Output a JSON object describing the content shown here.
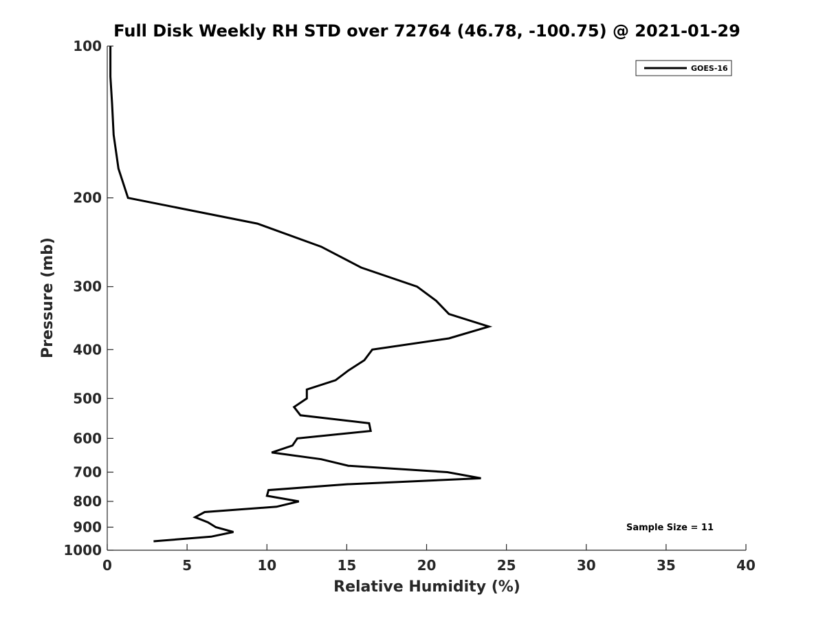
{
  "chart_data": {
    "type": "line",
    "title": "Full Disk Weekly RH STD over 72764 (46.78, -100.75) @ 2021-01-29",
    "xlabel": "Relative Humidity (%)",
    "ylabel": "Pressure (mb)",
    "xlim": [
      0,
      40
    ],
    "ylim": [
      100,
      1000
    ],
    "y_scale": "log",
    "y_reversed": true,
    "xticks": [
      0,
      5,
      10,
      15,
      20,
      25,
      30,
      35,
      40
    ],
    "yticks": [
      100,
      200,
      300,
      400,
      500,
      600,
      700,
      800,
      900,
      1000
    ],
    "grid": false,
    "legend_position": "top-right",
    "series": [
      {
        "name": "GOES-16",
        "color": "#000000",
        "x": [
          0.2,
          0.2,
          0.3,
          0.4,
          0.7,
          1.3,
          9.4,
          13.4,
          15.9,
          19.4,
          20.6,
          21.4,
          23.9,
          21.4,
          16.6,
          16.1,
          15.1,
          14.3,
          12.5,
          12.5,
          11.7,
          12.1,
          16.4,
          16.5,
          11.9,
          11.6,
          10.3,
          13.4,
          15.1,
          21.3,
          23.4,
          15.0,
          10.1,
          10.0,
          12.0,
          10.6,
          6.1,
          5.5,
          6.3,
          6.8,
          7.9,
          6.5,
          2.9
        ],
        "y": [
          100,
          115,
          130,
          150,
          175,
          200,
          225,
          250,
          275,
          300,
          320,
          340,
          360,
          380,
          400,
          420,
          440,
          460,
          480,
          500,
          520,
          540,
          560,
          580,
          600,
          620,
          640,
          660,
          680,
          700,
          720,
          740,
          760,
          780,
          800,
          820,
          840,
          860,
          880,
          900,
          920,
          940,
          960
        ]
      }
    ],
    "annotations": [
      "Sample Size = 11"
    ]
  }
}
